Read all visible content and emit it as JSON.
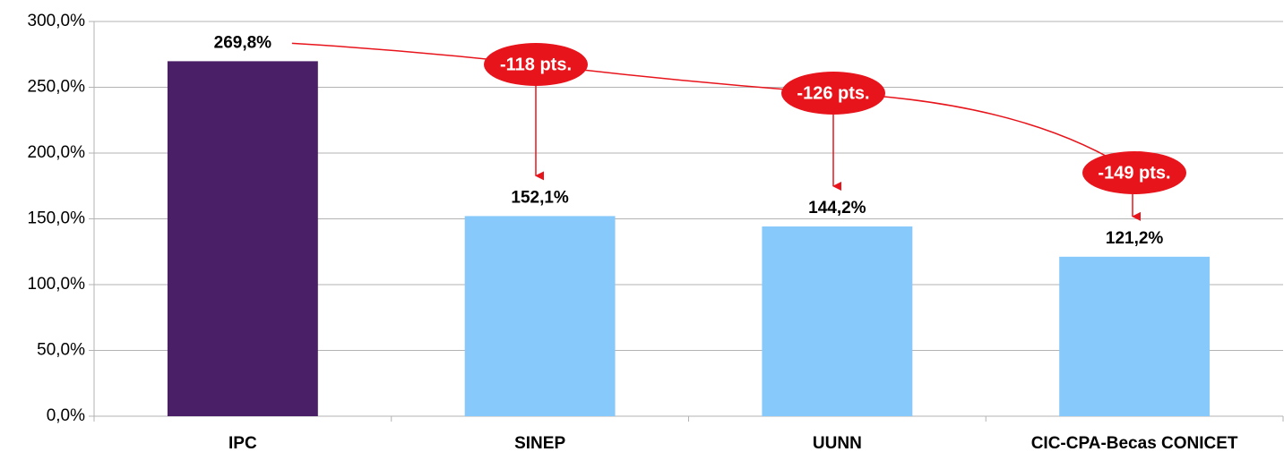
{
  "chart_data": {
    "type": "bar",
    "categories": [
      "IPC",
      "SINEP",
      "UUNN",
      "CIC-CPA-Becas CONICET"
    ],
    "values": [
      269.8,
      152.1,
      144.2,
      121.2
    ],
    "value_labels": [
      "269,8%",
      "152,1%",
      "144,2%",
      "121,2%"
    ],
    "colors": [
      "#4b1f68",
      "#87c9fb",
      "#87c9fb",
      "#87c9fb"
    ],
    "ylim": [
      0,
      300
    ],
    "yticks": [
      {
        "value": 0,
        "label": "0,0%"
      },
      {
        "value": 50,
        "label": "50,0%"
      },
      {
        "value": 100,
        "label": "100,0%"
      },
      {
        "value": 150,
        "label": "150,0%"
      },
      {
        "value": 200,
        "label": "200,0%"
      },
      {
        "value": 250,
        "label": "250,0%"
      },
      {
        "value": 300,
        "label": "300,0%"
      }
    ],
    "grid": true,
    "annotations": [
      "-118 pts.",
      "-126 pts.",
      "-149 pts."
    ],
    "annotation_color": "#e8141b"
  }
}
